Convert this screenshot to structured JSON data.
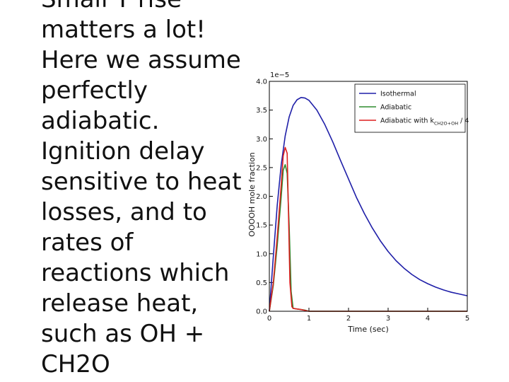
{
  "slide": {
    "text_lines": [
      "Small T rise",
      "matters a lot!",
      "Here we assume",
      "perfectly",
      "adiabatic.",
      "Ignition delay",
      "sensitive to heat",
      "losses, and to",
      "rates of",
      "reactions which",
      "release heat,",
      "such as OH +",
      "CH2O"
    ]
  },
  "chart_data": {
    "type": "line",
    "xlabel": "Time (sec)",
    "ylabel": "OOOOH mole fraction",
    "scale_label": "1e−5",
    "xlim": [
      0,
      5
    ],
    "ylim": [
      0,
      4.0
    ],
    "xticks": [
      0,
      1,
      2,
      3,
      4,
      5
    ],
    "yticks": [
      0.0,
      0.5,
      1.0,
      1.5,
      2.0,
      2.5,
      3.0,
      3.5,
      4.0
    ],
    "ytick_labels": [
      "0.0",
      "0.5",
      "1.0",
      "1.5",
      "2.0",
      "2.5",
      "3.0",
      "3.5",
      "4.0"
    ],
    "legend_position": "top-right",
    "series": [
      {
        "name": "Isothermal",
        "color": "#1f1fa8",
        "x": [
          0,
          0.1,
          0.2,
          0.3,
          0.4,
          0.5,
          0.6,
          0.7,
          0.8,
          0.9,
          1.0,
          1.2,
          1.4,
          1.6,
          1.8,
          2.0,
          2.2,
          2.4,
          2.6,
          2.8,
          3.0,
          3.2,
          3.4,
          3.6,
          3.8,
          4.0,
          4.2,
          4.4,
          4.6,
          4.8,
          5.0
        ],
        "y": [
          0,
          0.95,
          1.85,
          2.55,
          3.05,
          3.38,
          3.58,
          3.68,
          3.72,
          3.71,
          3.67,
          3.5,
          3.25,
          2.95,
          2.62,
          2.3,
          1.98,
          1.7,
          1.45,
          1.23,
          1.04,
          0.88,
          0.75,
          0.64,
          0.55,
          0.48,
          0.42,
          0.37,
          0.33,
          0.3,
          0.27
        ]
      },
      {
        "name": "Adiabatic",
        "color": "#2e8b2e",
        "x": [
          0,
          0.1,
          0.2,
          0.3,
          0.35,
          0.4,
          0.45,
          0.5,
          0.55,
          0.6,
          0.7,
          0.8,
          0.9,
          1.0,
          5.0
        ],
        "y": [
          0,
          0.45,
          1.15,
          2.0,
          2.45,
          2.55,
          2.4,
          1.5,
          0.35,
          0.05,
          0.04,
          0.03,
          0.02,
          0.0,
          0.0
        ]
      },
      {
        "name": "Adiabatic with k_CH2O+OH / 4",
        "label_main": "Adiabatic with k",
        "label_sub": "CH2O+OH",
        "label_tail": " / 4",
        "color": "#dd1f1f",
        "x": [
          0,
          0.1,
          0.2,
          0.3,
          0.35,
          0.4,
          0.45,
          0.48,
          0.52,
          0.57,
          0.6,
          0.7,
          0.8,
          1.0,
          5.0
        ],
        "y": [
          0,
          0.5,
          1.3,
          2.2,
          2.7,
          2.85,
          2.75,
          1.8,
          0.5,
          0.08,
          0.05,
          0.04,
          0.03,
          0.0,
          0.0
        ]
      }
    ]
  }
}
